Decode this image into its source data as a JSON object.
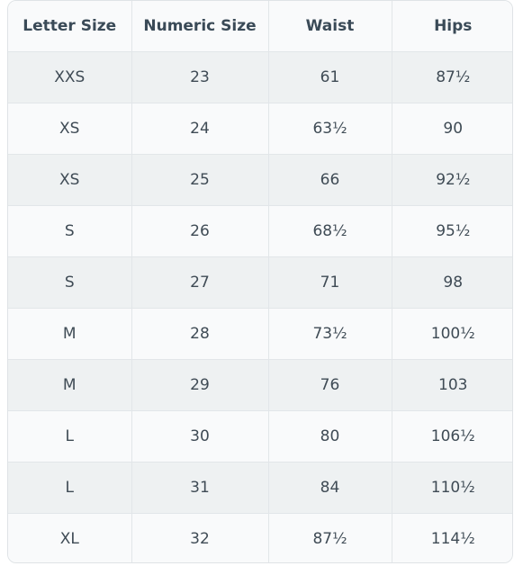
{
  "headers": [
    "Letter Size",
    "Numeric Size",
    "Waist",
    "Hips"
  ],
  "rows": [
    [
      "XXS",
      "23",
      "61",
      "87½"
    ],
    [
      "XS",
      "24",
      "63½",
      "90"
    ],
    [
      "XS",
      "25",
      "66",
      "92½"
    ],
    [
      "S",
      "26",
      "68½",
      "95½"
    ],
    [
      "S",
      "27",
      "71",
      "98"
    ],
    [
      "M",
      "28",
      "73½",
      "100½"
    ],
    [
      "M",
      "29",
      "76",
      "103"
    ],
    [
      "L",
      "30",
      "80",
      "106½"
    ],
    [
      "L",
      "31",
      "84",
      "110½"
    ],
    [
      "XL",
      "32",
      "87½",
      "114½"
    ]
  ]
}
